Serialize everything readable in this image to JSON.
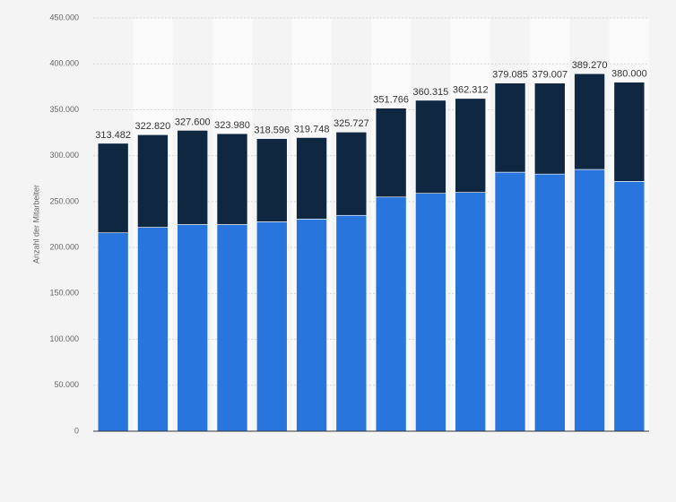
{
  "chart_data": {
    "type": "stacked_bar",
    "y_label": "Anzahl der Mitarbeiter",
    "categories": [
      null,
      null,
      null,
      null,
      null,
      null,
      null,
      null,
      null,
      null,
      null,
      null,
      null,
      null
    ],
    "series": [
      {
        "color": "#2876dd",
        "values": [
          216000,
          222000,
          225000,
          225000,
          228000,
          231000,
          235000,
          255000,
          259000,
          260000,
          282000,
          280000,
          285000,
          272000
        ]
      },
      {
        "color": "#0f2741",
        "values": [
          97482,
          100820,
          102600,
          98980,
          90596,
          88748,
          90727,
          96766,
          101315,
          102312,
          97085,
          99007,
          104270,
          108000
        ]
      }
    ],
    "totals": {
      "values": [
        313482,
        322820,
        327600,
        323980,
        318596,
        319748,
        325727,
        351766,
        360315,
        362312,
        379085,
        379007,
        389270,
        380000
      ],
      "value_labels": [
        "313.482",
        "322.820",
        "327.600",
        "323.980",
        "318.596",
        "319.748",
        "325.727",
        "351.766",
        "360.315",
        "362.312",
        "379.085",
        "379.007",
        "389.270",
        "380.000"
      ]
    },
    "ylim": [
      0,
      450000
    ],
    "yticks": [
      0,
      {
        "value": 50000,
        "label": "50.000"
      },
      {
        "value": 100000,
        "label": "100.000"
      },
      {
        "value": 150000,
        "label": "150.000"
      },
      {
        "value": 200000,
        "label": "200.000"
      },
      {
        "value": 250000,
        "label": "250.000"
      },
      {
        "value": 300000,
        "label": "300.000"
      },
      {
        "value": 350000,
        "label": "350.000"
      },
      {
        "value": 400000,
        "label": "400.000"
      },
      {
        "value": 450000,
        "label": "450.000"
      }
    ],
    "grid": true
  }
}
